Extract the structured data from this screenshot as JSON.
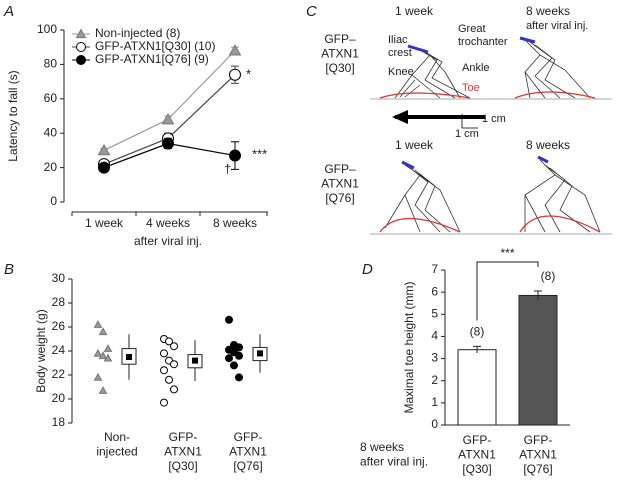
{
  "chart_data": [
    {
      "type": "line",
      "panel": "A",
      "ylabel": "Latency to fall (s)",
      "xlabel": "after viral inj.",
      "categories": [
        "1 week",
        "4 weeks",
        "8 weeks"
      ],
      "ylim": [
        0,
        100
      ],
      "yticks": [
        0,
        20,
        40,
        60,
        80,
        100
      ],
      "series": [
        {
          "name": "Non-injected (8)",
          "color": "#999999",
          "marker": "triangle",
          "values": [
            30,
            48,
            88
          ],
          "errors": [
            1,
            2,
            2
          ]
        },
        {
          "name": "GFP-ATXN1[Q30] (10)",
          "color": "#444444",
          "marker": "open-circle",
          "values": [
            22,
            37,
            74
          ],
          "errors": [
            2,
            3,
            5
          ]
        },
        {
          "name": "GFP-ATXN1[Q76] (9)",
          "color": "#000000",
          "marker": "filled-circle",
          "values": [
            20,
            34,
            27
          ],
          "errors": [
            2,
            3,
            8
          ]
        }
      ],
      "annotations": [
        "*",
        "***",
        "†"
      ]
    },
    {
      "type": "dot_box",
      "panel": "B",
      "ylabel": "Body weight (g)",
      "categories": [
        "Non-\ninjected",
        "GFP-\nATXN1\n[Q30]",
        "GFP-\nATXN1\n[Q76]"
      ],
      "ylim": [
        18,
        30
      ],
      "yticks": [
        18,
        20,
        22,
        24,
        26,
        28,
        30
      ],
      "groups": [
        {
          "marker": "triangle",
          "color": "#999999",
          "points": [
            26.2,
            25.6,
            24.2,
            23.8,
            23.6,
            23.4,
            21.8,
            20.7
          ],
          "mean": 23.5,
          "q1": 22.9,
          "q3": 24.2,
          "whisker_low": 21.6,
          "whisker_high": 25.4
        },
        {
          "marker": "open-circle",
          "color": "#444444",
          "points": [
            25.0,
            24.8,
            24.4,
            23.8,
            23.2,
            22.9,
            22.4,
            21.6,
            20.8,
            19.7
          ],
          "mean": 23.2,
          "q1": 22.6,
          "q3": 23.7,
          "whisker_low": 21.5,
          "whisker_high": 24.9
        },
        {
          "marker": "filled-circle",
          "color": "#000000",
          "points": [
            26.6,
            24.5,
            24.3,
            24.1,
            23.9,
            23.6,
            23.4,
            22.8,
            21.8
          ],
          "mean": 23.8,
          "q1": 23.2,
          "q3": 24.3,
          "whisker_low": 22.2,
          "whisker_high": 25.4
        }
      ]
    },
    {
      "type": "bar",
      "panel": "D",
      "ylabel": "Maximal toe height (mm)",
      "xnote": "8 weeks\nafter viral inj.",
      "categories": [
        "GFP-\nATXN1\n[Q30]",
        "GFP-\nATXN1\n[Q76]"
      ],
      "values": [
        3.4,
        5.85
      ],
      "errors": [
        0.15,
        0.2
      ],
      "colors": [
        "#ffffff",
        "#555555"
      ],
      "n_labels": [
        "(8)",
        "(8)"
      ],
      "significance": "***",
      "ylim": [
        0,
        7
      ],
      "yticks": [
        0,
        1,
        2,
        3,
        4,
        5,
        6,
        7
      ]
    }
  ],
  "panel_c": {
    "label": "C",
    "top_label": "GFP–\nATXN1\n[Q30]",
    "bottom_label": "GFP–\nATXN1\n[Q76]",
    "time_1": "1 week",
    "time_8": "8 weeks",
    "time_note": "after viral inj.",
    "time_1b": "1 week",
    "time_8b": "8 weeks",
    "iliac": "Iliac\ncrest",
    "trochanter": "Great\ntrochanter",
    "knee": "Knee",
    "ankle": "Ankle",
    "toe": "Toe",
    "scale_v": "1 cm",
    "scale_h": "1 cm"
  }
}
